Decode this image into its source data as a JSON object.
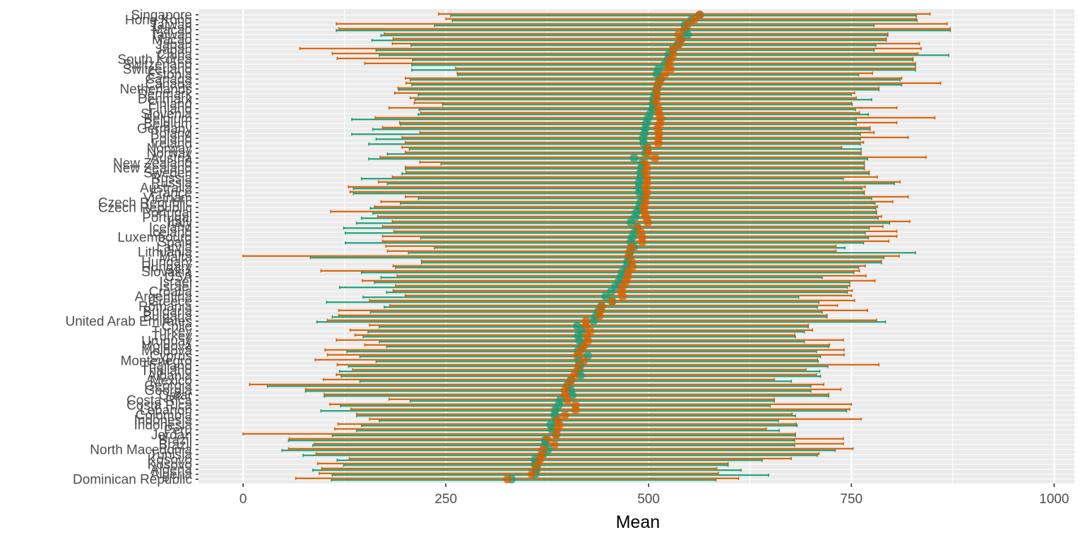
{
  "chart_data": {
    "type": "dot-range",
    "xlabel": "Mean",
    "ylabel": "",
    "xlim": [
      -55,
      1025
    ],
    "xticks": [
      0,
      250,
      500,
      750,
      1000
    ],
    "grid": true,
    "legend": "none",
    "colors": {
      "series_a": "#1b9e77",
      "series_b": "#d95f02",
      "panel": "#ebebeb",
      "grid": "#ffffff"
    },
    "series_names": [
      "series_a",
      "series_b"
    ],
    "rows": [
      {
        "country": "Singapore",
        "a": [
          256,
          563,
          830
        ],
        "b": [
          241,
          563,
          847
        ]
      },
      {
        "country": "Hong Kong",
        "a": [
          258,
          553,
          831
        ],
        "b": [
          250,
          556,
          830
        ]
      },
      {
        "country": "Taiwan",
        "a": [
          236,
          545,
          778
        ],
        "b": [
          115,
          548,
          868
        ]
      },
      {
        "country": "Macao",
        "a": [
          115,
          545,
          872
        ],
        "b": [
          118,
          544,
          872
        ]
      },
      {
        "country": "Taiwan",
        "a": [
          170,
          548,
          795
        ],
        "b": [
          174,
          537,
          795
        ]
      },
      {
        "country": "Macao",
        "a": [
          159,
          540,
          793
        ],
        "b": [
          185,
          540,
          793
        ]
      },
      {
        "country": "Japan",
        "a": [
          207,
          536,
          780
        ],
        "b": [
          184,
          537,
          834
        ]
      },
      {
        "country": "Japan",
        "a": [
          164,
          530,
          778
        ],
        "b": [
          70,
          530,
          836
        ]
      },
      {
        "country": "China",
        "a": [
          168,
          525,
          870
        ],
        "b": [
          110,
          530,
          832
        ]
      },
      {
        "country": "South Korea",
        "a": [
          209,
          524,
          826
        ],
        "b": [
          116,
          527,
          826
        ]
      },
      {
        "country": "Switzerland",
        "a": [
          208,
          520,
          829
        ],
        "b": [
          150,
          524,
          829
        ]
      },
      {
        "country": "Switzerland",
        "a": [
          208,
          512,
          829
        ],
        "b": [
          262,
          527,
          829
        ]
      },
      {
        "country": "Estonia",
        "a": [
          265,
          510,
          759
        ],
        "b": [
          264,
          520,
          776
        ]
      },
      {
        "country": "Canada",
        "a": [
          206,
          514,
          810
        ],
        "b": [
          200,
          515,
          812
        ]
      },
      {
        "country": "Canada",
        "a": [
          208,
          512,
          812
        ],
        "b": [
          201,
          512,
          860
        ]
      },
      {
        "country": "Netherlands",
        "a": [
          192,
          510,
          784
        ],
        "b": [
          191,
          510,
          784
        ]
      },
      {
        "country": "Denmark",
        "a": [
          216,
          508,
          750
        ],
        "b": [
          187,
          510,
          754
        ]
      },
      {
        "country": "Denmark",
        "a": [
          212,
          506,
          775
        ],
        "b": [
          206,
          510,
          756
        ]
      },
      {
        "country": "Finland",
        "a": [
          246,
          505,
          751
        ],
        "b": [
          211,
          508,
          750
        ]
      },
      {
        "country": "Finland",
        "a": [
          217,
          505,
          755
        ],
        "b": [
          180,
          512,
          806
        ]
      },
      {
        "country": "Slovenia",
        "a": [
          216,
          502,
          771
        ],
        "b": [
          219,
          513,
          760
        ]
      },
      {
        "country": "Belgium",
        "a": [
          134,
          499,
          756
        ],
        "b": [
          163,
          515,
          853
        ]
      },
      {
        "country": "Belgium",
        "a": [
          194,
          497,
          756
        ],
        "b": [
          193,
          514,
          806
        ]
      },
      {
        "country": "Germany",
        "a": [
          160,
          496,
          773
        ],
        "b": [
          172,
          511,
          773
        ]
      },
      {
        "country": "Poland",
        "a": [
          134,
          495,
          761
        ],
        "b": [
          218,
          513,
          778
        ]
      },
      {
        "country": "Poland",
        "a": [
          164,
          493,
          761
        ],
        "b": [
          196,
          512,
          820
        ]
      },
      {
        "country": "Ireland",
        "a": [
          155,
          494,
          761
        ],
        "b": [
          200,
          512,
          765
        ]
      },
      {
        "country": "Norway",
        "a": [
          205,
          498,
          762
        ],
        "b": [
          196,
          499,
          738
        ]
      },
      {
        "country": "Norway",
        "a": [
          178,
          496,
          762
        ],
        "b": [
          200,
          499,
          762
        ]
      },
      {
        "country": "Austria",
        "a": [
          155,
          482,
          770
        ],
        "b": [
          169,
          508,
          842
        ]
      },
      {
        "country": "New Zealand",
        "a": [
          244,
          492,
          766
        ],
        "b": [
          218,
          495,
          766
        ]
      },
      {
        "country": "New Zealand",
        "a": [
          200,
          491,
          766
        ],
        "b": [
          200,
          498,
          766
        ]
      },
      {
        "country": "Sweden",
        "a": [
          196,
          490,
          772
        ],
        "b": [
          201,
          495,
          772
        ]
      },
      {
        "country": "Russia",
        "a": [
          146,
          490,
          740
        ],
        "b": [
          184,
          498,
          782
        ]
      },
      {
        "country": "Russia",
        "a": [
          178,
          488,
          803
        ],
        "b": [
          167,
          498,
          810
        ]
      },
      {
        "country": "Australia",
        "a": [
          136,
          488,
          763
        ],
        "b": [
          130,
          496,
          767
        ]
      },
      {
        "country": "France",
        "a": [
          136,
          489,
          766
        ],
        "b": [
          132,
          498,
          766
        ]
      },
      {
        "country": "Vietnam",
        "a": [
          216,
          493,
          775
        ],
        "b": [
          200,
          496,
          820
        ]
      },
      {
        "country": "Czech Republic",
        "a": [
          194,
          490,
          779
        ],
        "b": [
          170,
          496,
          801
        ]
      },
      {
        "country": "Czech Republic",
        "a": [
          157,
          488,
          780
        ],
        "b": [
          162,
          494,
          782
        ]
      },
      {
        "country": "Portugal",
        "a": [
          160,
          485,
          781
        ],
        "b": [
          108,
          495,
          781
        ]
      },
      {
        "country": "Portugal",
        "a": [
          146,
          483,
          783
        ],
        "b": [
          166,
          497,
          787
        ]
      },
      {
        "country": "Italy",
        "a": [
          140,
          478,
          797
        ],
        "b": [
          184,
          499,
          822
        ]
      },
      {
        "country": "Iceland",
        "a": [
          124,
          486,
          772
        ],
        "b": [
          172,
          486,
          789
        ]
      },
      {
        "country": "Iceland",
        "a": [
          126,
          483,
          767
        ],
        "b": [
          186,
          490,
          806
        ]
      },
      {
        "country": "Luxembourg",
        "a": [
          219,
          480,
          771
        ],
        "b": [
          172,
          492,
          806
        ]
      },
      {
        "country": "Spain",
        "a": [
          126,
          478,
          765
        ],
        "b": [
          172,
          492,
          796
        ]
      },
      {
        "country": "Latvia",
        "a": [
          236,
          482,
          742
        ],
        "b": [
          176,
          479,
          731
        ]
      },
      {
        "country": "Lithuania",
        "a": [
          204,
          477,
          829
        ],
        "b": [
          178,
          477,
          731
        ]
      },
      {
        "country": "Malta",
        "a": [
          83,
          476,
          790
        ],
        "b": [
          0,
          475,
          809
        ]
      },
      {
        "country": "Hungary",
        "a": [
          220,
          474,
          787
        ],
        "b": [
          220,
          479,
          787
        ]
      },
      {
        "country": "Hungary",
        "a": [
          188,
          473,
          759
        ],
        "b": [
          185,
          480,
          767
        ]
      },
      {
        "country": "Slovakia",
        "a": [
          146,
          468,
          753
        ],
        "b": [
          96,
          475,
          760
        ]
      },
      {
        "country": "USA",
        "a": [
          170,
          466,
          714
        ],
        "b": [
          190,
          474,
          768
        ]
      },
      {
        "country": "Israel",
        "a": [
          162,
          463,
          748
        ],
        "b": [
          147,
          472,
          779
        ]
      },
      {
        "country": "Israel",
        "a": [
          119,
          459,
          745
        ],
        "b": [
          188,
          468,
          748
        ]
      },
      {
        "country": "Croatia",
        "a": [
          177,
          454,
          745
        ],
        "b": [
          185,
          466,
          751
        ]
      },
      {
        "country": "Argentina",
        "a": [
          148,
          447,
          685
        ],
        "b": [
          200,
          468,
          750
        ]
      },
      {
        "country": "Greece",
        "a": [
          103,
          455,
          710
        ],
        "b": [
          156,
          455,
          754
        ]
      },
      {
        "country": "Romania",
        "a": [
          174,
          442,
          708
        ],
        "b": [
          181,
          442,
          733
        ]
      },
      {
        "country": "Bulgaria",
        "a": [
          157,
          438,
          714
        ],
        "b": [
          118,
          440,
          770
        ]
      },
      {
        "country": "Bulgaria",
        "a": [
          110,
          435,
          720
        ],
        "b": [
          118,
          439,
          720
        ]
      },
      {
        "country": "United Arab Emirates",
        "a": [
          91,
          432,
          792
        ],
        "b": [
          104,
          423,
          781
        ]
      },
      {
        "country": "Chile",
        "a": [
          168,
          412,
          697
        ],
        "b": [
          156,
          422,
          697
        ]
      },
      {
        "country": "Turkey",
        "a": [
          154,
          417,
          692
        ],
        "b": [
          132,
          428,
          702
        ]
      },
      {
        "country": "Turkey",
        "a": [
          148,
          413,
          681
        ],
        "b": [
          138,
          424,
          680
        ]
      },
      {
        "country": "Uruguay",
        "a": [
          168,
          415,
          692
        ],
        "b": [
          115,
          425,
          740
        ]
      },
      {
        "country": "Moldova",
        "a": [
          177,
          418,
          722
        ],
        "b": [
          150,
          420,
          723
        ]
      },
      {
        "country": "Moldova",
        "a": [
          128,
          413,
          707
        ],
        "b": [
          101,
          416,
          741
        ]
      },
      {
        "country": "Cyprus",
        "a": [
          144,
          425,
          712
        ],
        "b": [
          104,
          412,
          741
        ]
      },
      {
        "country": "Montenegro",
        "a": [
          164,
          414,
          709
        ],
        "b": [
          89,
          420,
          708
        ]
      },
      {
        "country": "Thailand",
        "a": [
          130,
          416,
          721
        ],
        "b": [
          116,
          414,
          784
        ]
      },
      {
        "country": "Thailand",
        "a": [
          119,
          414,
          711
        ],
        "b": [
          135,
          412,
          694
        ]
      },
      {
        "country": "Albania",
        "a": [
          121,
          416,
          712
        ],
        "b": [
          115,
          408,
          707
        ]
      },
      {
        "country": "Mexico",
        "a": [
          144,
          404,
          676
        ],
        "b": [
          99,
          404,
          655
        ]
      },
      {
        "country": "Georgia",
        "a": [
          30,
          400,
          700
        ],
        "b": [
          8,
          401,
          716
        ]
      },
      {
        "country": "Georgia",
        "a": [
          77,
          404,
          700
        ],
        "b": [
          77,
          397,
          737
        ]
      },
      {
        "country": "Qatar",
        "a": [
          100,
          406,
          722
        ],
        "b": [
          100,
          397,
          722
        ]
      },
      {
        "country": "Costa Rica",
        "a": [
          206,
          391,
          655
        ],
        "b": [
          180,
          400,
          655
        ]
      },
      {
        "country": "Costa Rica",
        "a": [
          120,
          389,
          650
        ],
        "b": [
          107,
          410,
          750
        ]
      },
      {
        "country": "Lebanon",
        "a": [
          96,
          385,
          744
        ],
        "b": [
          133,
          410,
          748
        ]
      },
      {
        "country": "Colombia",
        "a": [
          140,
          384,
          681
        ],
        "b": [
          140,
          397,
          677
        ]
      },
      {
        "country": "Indonesia",
        "a": [
          168,
          386,
          660
        ],
        "b": [
          156,
          388,
          762
        ]
      },
      {
        "country": "Indonesia",
        "a": [
          146,
          379,
          683
        ],
        "b": [
          117,
          390,
          682
        ]
      },
      {
        "country": "Peru",
        "a": [
          140,
          381,
          661
        ],
        "b": [
          113,
          387,
          645
        ]
      },
      {
        "country": "Jordan",
        "a": [
          110,
          386,
          681
        ],
        "b": [
          0,
          386,
          681
        ]
      },
      {
        "country": "Brazil",
        "a": [
          56,
          373,
          680
        ],
        "b": [
          57,
          375,
          740
        ]
      },
      {
        "country": "Brazil",
        "a": [
          86,
          372,
          680
        ],
        "b": [
          88,
          384,
          740
        ]
      },
      {
        "country": "North Macedonia",
        "a": [
          48,
          376,
          730
        ],
        "b": [
          56,
          370,
          752
        ]
      },
      {
        "country": "Tunisia",
        "a": [
          74,
          370,
          708
        ],
        "b": [
          90,
          368,
          710
        ]
      },
      {
        "country": "Kosovo",
        "a": [
          116,
          360,
          640
        ],
        "b": [
          131,
          366,
          676
        ]
      },
      {
        "country": "Kosovo",
        "a": [
          124,
          360,
          598
        ],
        "b": [
          92,
          363,
          598
        ]
      },
      {
        "country": "Algeria",
        "a": [
          86,
          362,
          614
        ],
        "b": [
          97,
          361,
          584
        ]
      },
      {
        "country": "Algeria",
        "a": [
          110,
          360,
          648
        ],
        "b": [
          94,
          356,
          586
        ]
      },
      {
        "country": "Dominican Republic",
        "a": [
          109,
          331,
          583
        ],
        "b": [
          65,
          326,
          611
        ]
      }
    ],
    "y_tick_labels": [
      "Singapore",
      "Hong Kong",
      "Taiwan",
      "Macao",
      "Taiwan",
      "Macao",
      "Japan",
      "Japan",
      "China",
      "South Korea",
      "Switzerland",
      "Switzerland",
      "Estonia",
      "Canada",
      "Canada",
      "Netherlands",
      "Denmark",
      "Denmark",
      "Finland",
      "Finland",
      "Slovenia",
      "Belgium",
      "Belgium",
      "Germany",
      "Poland",
      "Poland",
      "Ireland",
      "Norway",
      "Norway",
      "Austria",
      "New Zealand",
      "New Zealand",
      "Sweden",
      "Russia",
      "Russia",
      "Australia",
      "France",
      "Vietnam",
      "Czech Republic",
      "Czech Republic",
      "Portugal",
      "Portugal",
      "Italy",
      "Iceland",
      "Iceland",
      "Luxembourg",
      "Spain",
      "Latvia",
      "Lithuania",
      "Malta",
      "Hungary",
      "Hungary",
      "Slovakia",
      "USA",
      "Israel",
      "Israel",
      "Croatia",
      "Argentina",
      "Greece",
      "Romania",
      "Bulgaria",
      "Bulgaria",
      "United Arab Emirates",
      "Chile",
      "Turkey",
      "Turkey",
      "Uruguay",
      "Moldova",
      "Moldova",
      "Cyprus",
      "Montenegro",
      "Thailand",
      "Thailand",
      "Albania",
      "Mexico",
      "Georgia",
      "Georgia",
      "Qatar",
      "Costa Rica",
      "Costa Rica",
      "Lebanon",
      "Colombia",
      "Indonesia",
      "Indonesia",
      "Peru",
      "Jordan",
      "Brazil",
      "Brazil",
      "North Macedonia",
      "Tunisia",
      "Kosovo",
      "Kosovo",
      "Algeria",
      "Algeria",
      "Dominican Republic"
    ]
  }
}
